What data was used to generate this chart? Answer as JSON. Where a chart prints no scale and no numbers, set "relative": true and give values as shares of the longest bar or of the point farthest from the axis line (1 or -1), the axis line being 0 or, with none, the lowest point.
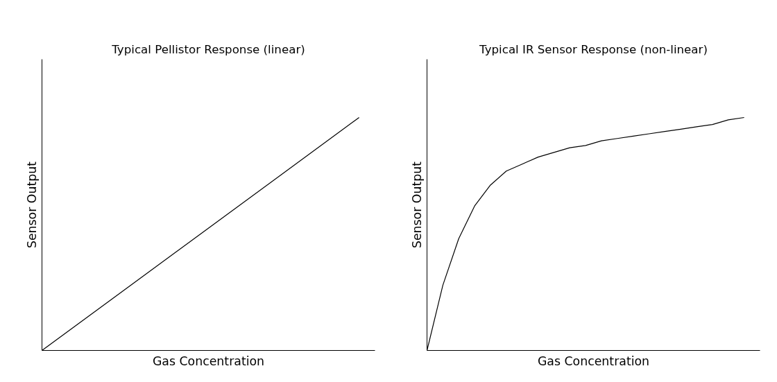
{
  "chart_data": [
    {
      "type": "line",
      "title": "Typical Pellistor Response (linear)",
      "xlabel": "Gas Concentration",
      "ylabel": "Sensor Output",
      "relative": true,
      "categories": [
        null,
        null,
        null,
        null,
        null
      ],
      "series": [
        {
          "color": "#000000",
          "values": [
            0,
            0.25,
            0.5,
            0.75,
            1
          ]
        }
      ]
    },
    {
      "type": "line",
      "title": "Typical IR Sensor Response (non-linear)",
      "xlabel": "Gas Concentration",
      "ylabel": "Sensor Output",
      "relative": true,
      "categories": [
        null,
        null,
        null,
        null,
        null,
        null,
        null,
        null,
        null,
        null,
        null,
        null,
        null,
        null,
        null,
        null,
        null,
        null,
        null,
        null,
        null
      ],
      "series": [
        {
          "color": "#000000",
          "values": [
            0,
            0.28,
            0.48,
            0.62,
            0.71,
            0.77,
            0.8,
            0.83,
            0.85,
            0.87,
            0.88,
            0.9,
            0.91,
            0.92,
            0.93,
            0.94,
            0.95,
            0.96,
            0.97,
            0.99,
            1
          ]
        }
      ]
    }
  ]
}
